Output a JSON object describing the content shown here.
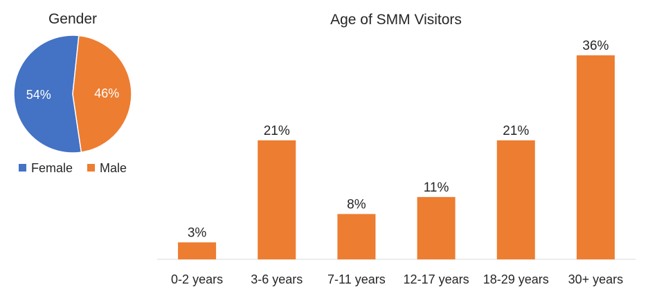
{
  "chart_data": [
    {
      "type": "pie",
      "title": "Gender",
      "slices": [
        {
          "label": "Female",
          "value": 54,
          "display": "54%",
          "color": "#4472C4"
        },
        {
          "label": "Male",
          "value": 46,
          "display": "46%",
          "color": "#ED7D31"
        }
      ],
      "legend": "bottom"
    },
    {
      "type": "bar",
      "title": "Age of SMM Visitors",
      "categories": [
        "0-2 years",
        "3-6 years",
        "7-11 years",
        "12-17 years",
        "18-29 years",
        "30+ years"
      ],
      "values": [
        3,
        21,
        8,
        11,
        21,
        36
      ],
      "data_labels": [
        "3%",
        "21%",
        "8%",
        "11%",
        "21%",
        "36%"
      ],
      "color": "#ED7D31",
      "ylim": [
        0,
        40
      ],
      "grid": false
    }
  ]
}
